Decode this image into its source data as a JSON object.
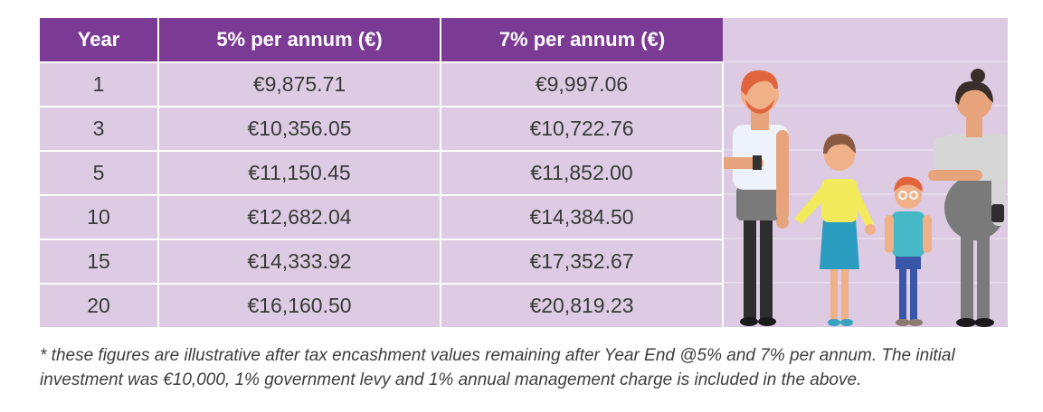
{
  "table": {
    "headers": [
      "Year",
      "5% per annum (€)",
      "7% per annum (€)"
    ],
    "rows": [
      [
        "1",
        "€9,875.71",
        "€9,997.06"
      ],
      [
        "3",
        "€10,356.05",
        "€10,722.76"
      ],
      [
        "5",
        "€11,150.45",
        "€11,852.00"
      ],
      [
        "10",
        "€12,682.04",
        "€14,384.50"
      ],
      [
        "15",
        "€14,333.92",
        "€17,352.67"
      ],
      [
        "20",
        "€16,160.50",
        "€20,819.23"
      ]
    ]
  },
  "footnote": {
    "line1": "* these figures are illustrative after tax encashment values remaining after Year End @5% and 7% per annum. The initial",
    "line2": "investment was €10,000, 1% government levy and 1% annual management charge is included in the above."
  },
  "colors": {
    "header_bg": "#7b3a93",
    "cell_bg": "#dccbe2",
    "text": "#3a3a3a"
  },
  "illustration": {
    "icon": "family-illustration"
  }
}
